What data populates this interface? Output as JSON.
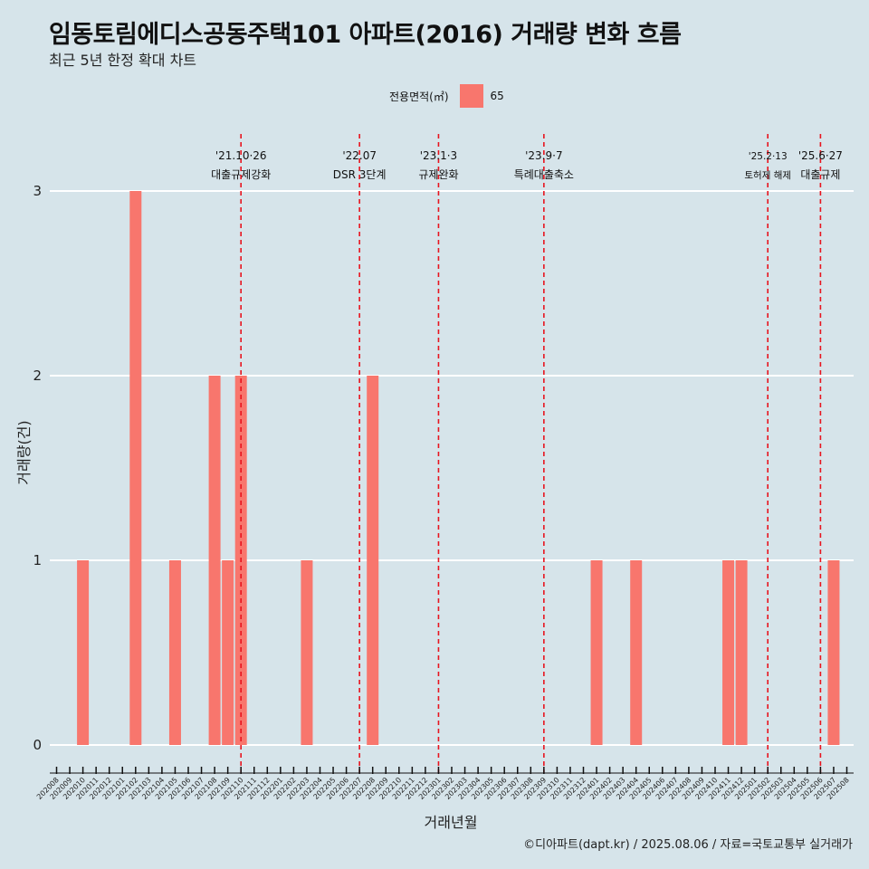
{
  "header": {
    "title": "임동토림에디스공동주택101 아파트(2016) 거래량 변화 흐름",
    "subtitle": "최근 5년 한정 확대 차트"
  },
  "legend": {
    "title": "전용면적(㎡)",
    "items": [
      {
        "label": "65",
        "color": "#f8766d"
      }
    ]
  },
  "footer": "©디아파트(dapt.kr) / 2025.08.06 / 자료=국토교통부 실거래가",
  "chart_data": {
    "type": "bar",
    "xlabel": "거래년월",
    "ylabel": "거래량(건)",
    "ylim": [
      0,
      3
    ],
    "yticks": [
      "0",
      "1",
      "2",
      "3"
    ],
    "grid": true,
    "legend_position": "top",
    "categories": [
      "202008",
      "202009",
      "202010",
      "202011",
      "202012",
      "202101",
      "202102",
      "202103",
      "202104",
      "202105",
      "202106",
      "202107",
      "202108",
      "202109",
      "202110",
      "202111",
      "202112",
      "202201",
      "202202",
      "202203",
      "202204",
      "202205",
      "202206",
      "202207",
      "202208",
      "202209",
      "202210",
      "202211",
      "202212",
      "202301",
      "202302",
      "202303",
      "202304",
      "202305",
      "202306",
      "202307",
      "202308",
      "202309",
      "202310",
      "202311",
      "202312",
      "202401",
      "202402",
      "202403",
      "202404",
      "202405",
      "202406",
      "202407",
      "202408",
      "202409",
      "202410",
      "202411",
      "202412",
      "202501",
      "202502",
      "202503",
      "202504",
      "202505",
      "202506",
      "202507",
      "202508"
    ],
    "series": [
      {
        "name": "65",
        "color": "#f8766d",
        "values": [
          0,
          0,
          1,
          0,
          0,
          0,
          3,
          0,
          0,
          1,
          0,
          0,
          2,
          1,
          2,
          0,
          0,
          0,
          0,
          1,
          0,
          0,
          0,
          0,
          2,
          0,
          0,
          0,
          0,
          0,
          0,
          0,
          0,
          0,
          0,
          0,
          0,
          0,
          0,
          0,
          0,
          1,
          0,
          0,
          1,
          0,
          0,
          0,
          0,
          0,
          0,
          1,
          1,
          0,
          0,
          0,
          0,
          0,
          0,
          1,
          0
        ]
      }
    ],
    "annotations": [
      {
        "x": "202110",
        "line1": "'21.10·26",
        "line2": "대출규제강화",
        "style": "normal"
      },
      {
        "x": "202207",
        "line1": "'22.07",
        "line2": "DSR 3단계",
        "style": "normal"
      },
      {
        "x": "202301",
        "line1": "'23.1·3",
        "line2": "규제완화",
        "style": "normal"
      },
      {
        "x": "202309",
        "line1": "'23.9·7",
        "line2": "특례대출축소",
        "style": "normal"
      },
      {
        "x": "202502",
        "line1": "'25.2·13",
        "line2": "토허제 해제",
        "style": "small"
      },
      {
        "x": "202506",
        "line1": "'25.6·27",
        "line2": "대출규제",
        "style": "normal"
      }
    ]
  }
}
